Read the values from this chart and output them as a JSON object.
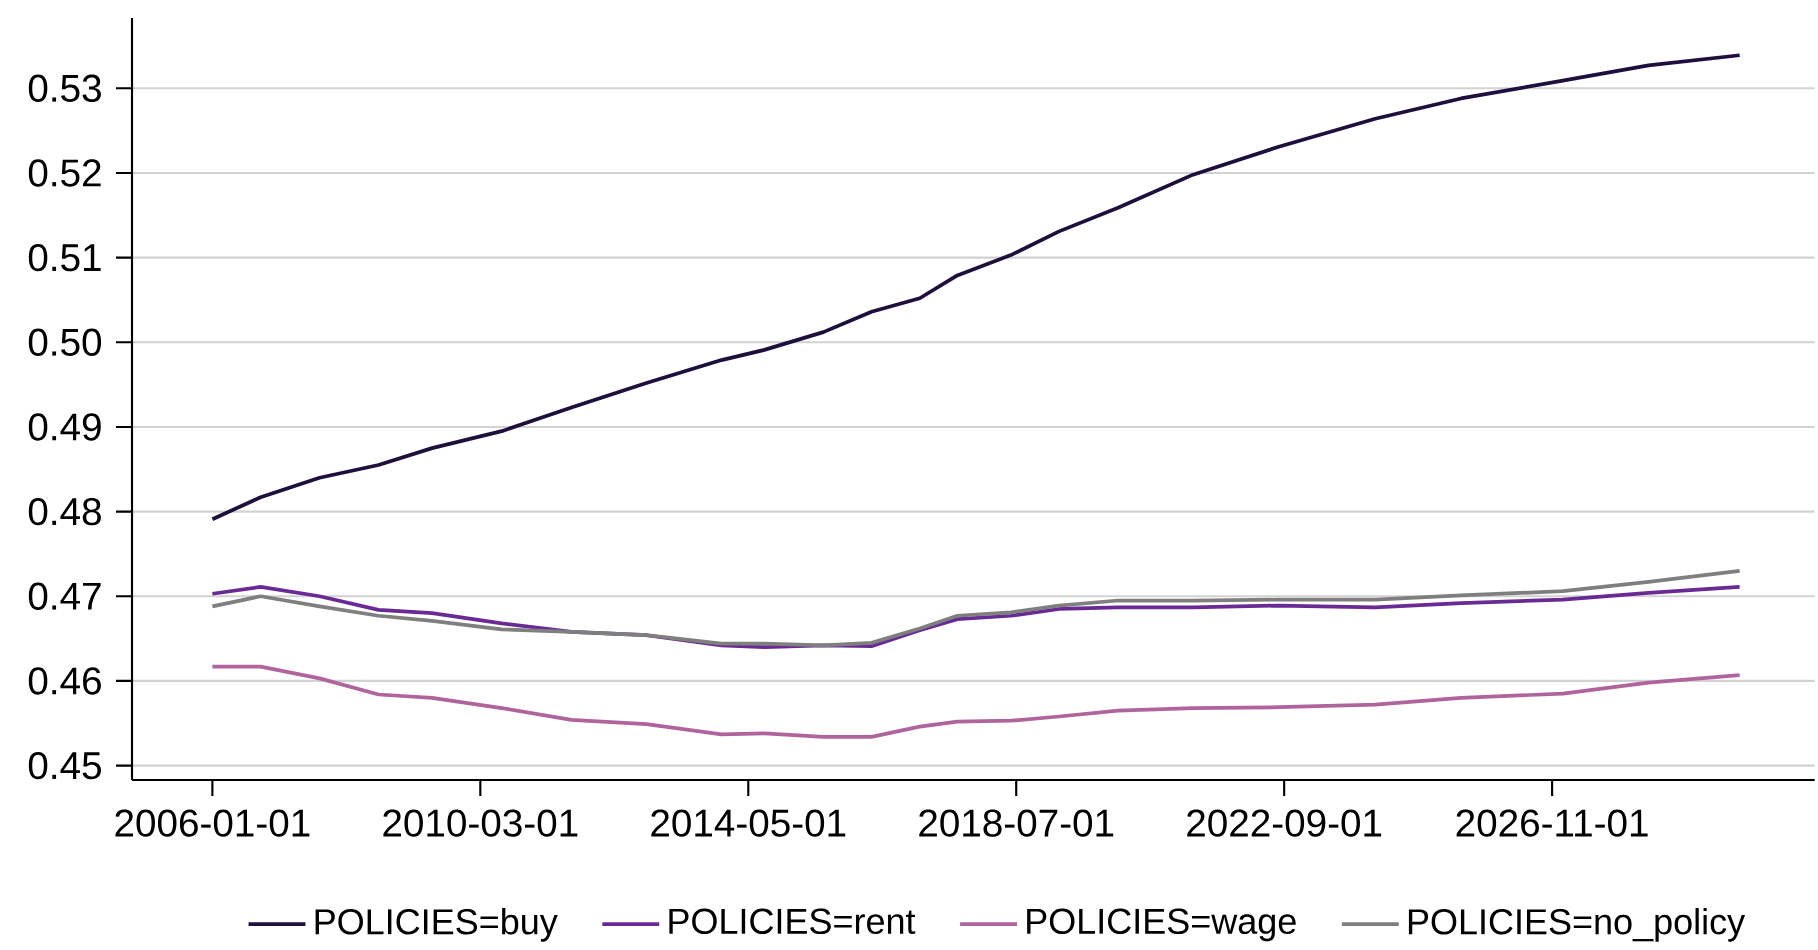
{
  "chart_data": {
    "type": "line",
    "x": [
      "2006-01",
      "2006-10",
      "2007-09",
      "2008-08",
      "2009-06",
      "2010-07",
      "2011-08",
      "2012-10",
      "2013-12",
      "2014-08",
      "2015-07",
      "2016-04",
      "2017-01",
      "2017-08",
      "2018-06",
      "2019-03",
      "2020-02",
      "2021-04",
      "2022-08",
      "2024-02",
      "2025-06",
      "2027-01",
      "2028-05",
      "2029-10"
    ],
    "series": [
      {
        "name": "POLICIES=buy",
        "color": "#1f0f3d",
        "values": [
          0.4791,
          0.4817,
          0.484,
          0.4855,
          0.4875,
          0.4895,
          0.4923,
          0.4952,
          0.4979,
          0.4991,
          0.5012,
          0.5036,
          0.5052,
          0.5079,
          0.5103,
          0.5131,
          0.5159,
          0.5198,
          0.5231,
          0.5264,
          0.5288,
          0.5309,
          0.5327,
          0.5339
        ]
      },
      {
        "name": "POLICIES=rent",
        "color": "#6a2a96",
        "values": [
          0.4703,
          0.4711,
          0.47,
          0.4684,
          0.468,
          0.4668,
          0.4658,
          0.4654,
          0.4642,
          0.464,
          0.4642,
          0.4641,
          0.466,
          0.4673,
          0.4677,
          0.4685,
          0.4687,
          0.4687,
          0.4689,
          0.4687,
          0.4692,
          0.4696,
          0.4704,
          0.4711
        ]
      },
      {
        "name": "POLICIES=wage",
        "color": "#b0649e",
        "values": [
          0.4617,
          0.4617,
          0.4603,
          0.4584,
          0.458,
          0.4568,
          0.4554,
          0.4549,
          0.4537,
          0.4538,
          0.4534,
          0.4534,
          0.4546,
          0.4552,
          0.4553,
          0.4558,
          0.4565,
          0.4568,
          0.4569,
          0.4572,
          0.458,
          0.4585,
          0.4598,
          0.4607
        ]
      },
      {
        "name": "POLICIES=no_policy",
        "color": "#7f7f7f",
        "values": [
          0.4688,
          0.47,
          0.4688,
          0.4677,
          0.4671,
          0.4661,
          0.4658,
          0.4654,
          0.4644,
          0.4644,
          0.4642,
          0.4645,
          0.4662,
          0.4677,
          0.4681,
          0.4689,
          0.4695,
          0.4695,
          0.4696,
          0.4696,
          0.4701,
          0.4706,
          0.4717,
          0.473
        ]
      }
    ],
    "xlim": [
      "2004-10",
      "2030-12"
    ],
    "xticks": [
      "2006-01-01",
      "2010-03-01",
      "2014-05-01",
      "2018-07-01",
      "2022-09-01",
      "2026-11-01"
    ],
    "ylim": [
      0.4483,
      0.5383
    ],
    "yticks": [
      0.45,
      0.46,
      0.47,
      0.48,
      0.49,
      {
        "value": 0.5,
        "label": "0.50"
      },
      0.51,
      0.52,
      0.53
    ],
    "grid": "y",
    "legend": "bottom"
  }
}
